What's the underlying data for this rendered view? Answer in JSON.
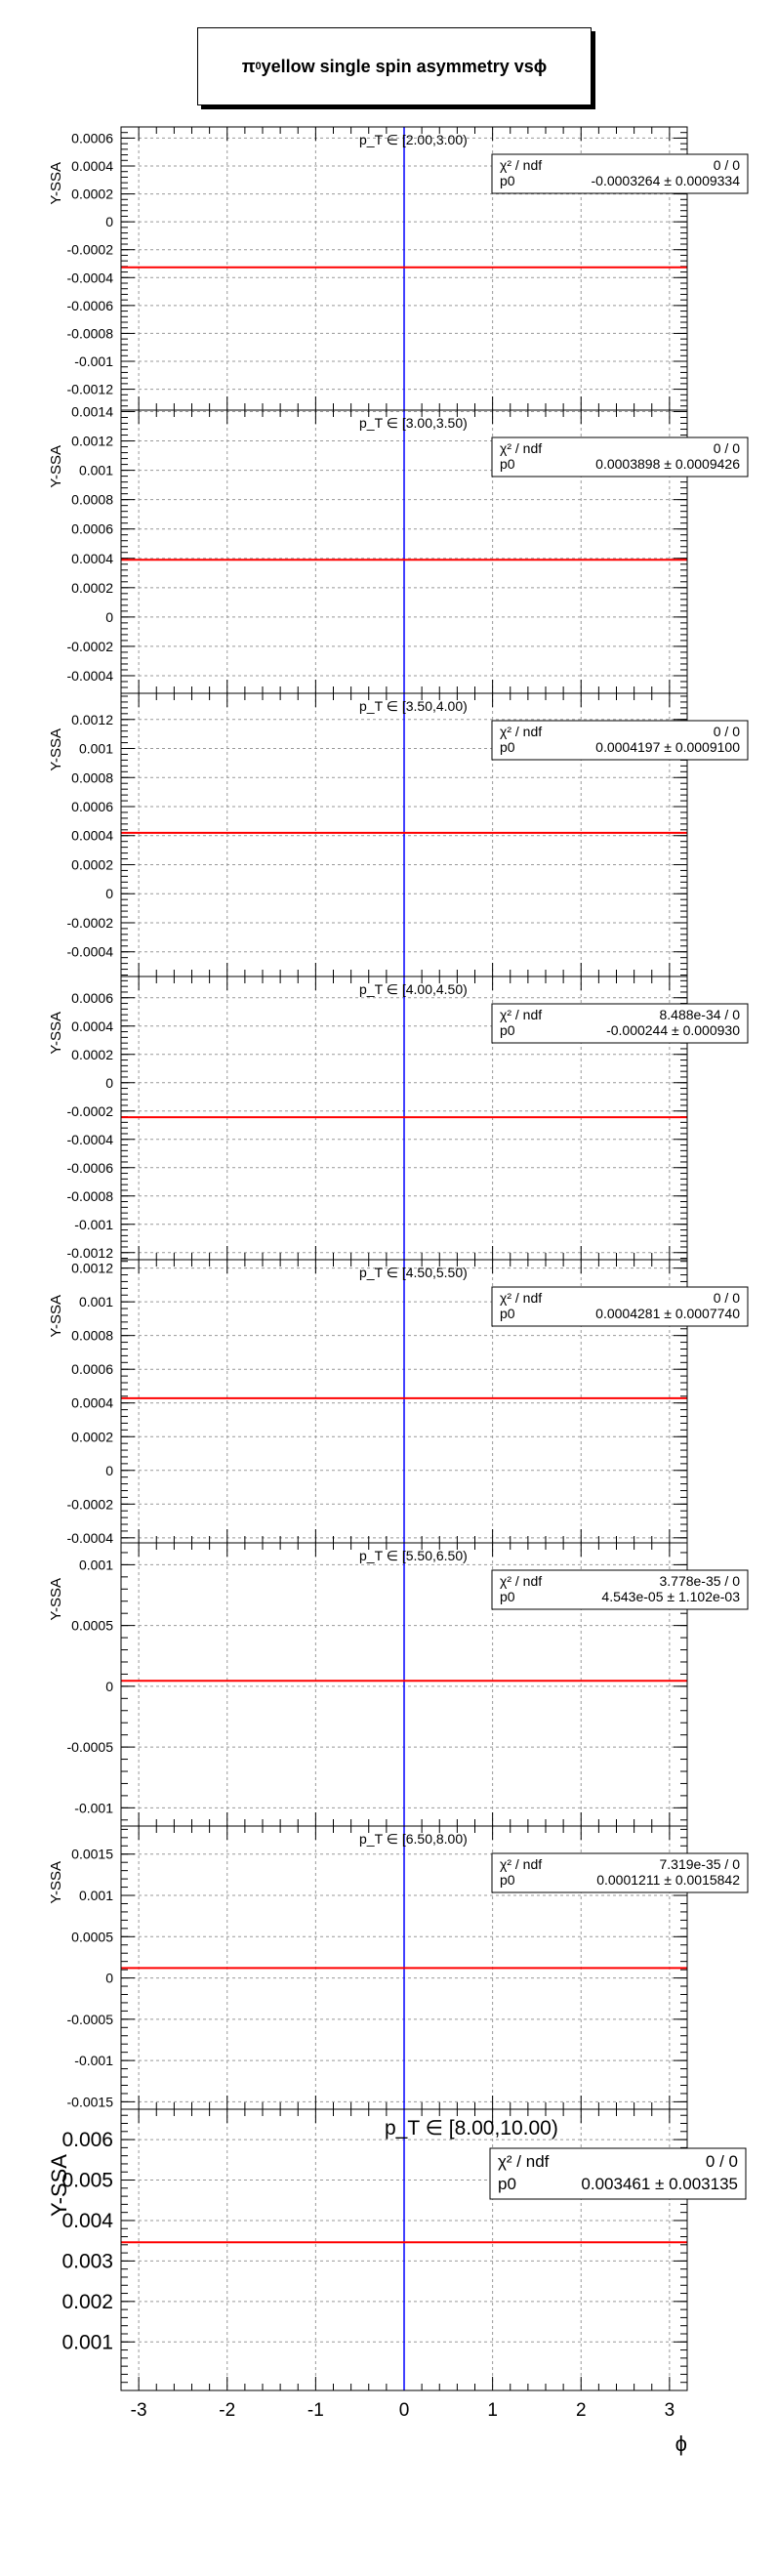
{
  "title": {
    "prefix": "π",
    "sup": "0",
    "suffix": " yellow single spin asymmetry vs ",
    "phi": "ϕ"
  },
  "ylabel": "Y-SSA",
  "xlabel": "ϕ",
  "x_ticks": [
    "-3",
    "-2",
    "-1",
    "0",
    "1",
    "2",
    "3"
  ],
  "chart_data": [
    {
      "type": "line",
      "panel_label": "p_T ∈ [2.00,3.00)",
      "ylim": [
        -0.00135,
        0.00068
      ],
      "y_ticks": [
        "-0.0012",
        "-0.001",
        "-0.0008",
        "-0.0006",
        "-0.0004",
        "-0.0002",
        "0",
        "0.0002",
        "0.0004",
        "0.0006"
      ],
      "y_tick_values": [
        -0.0012,
        -0.001,
        -0.0008,
        -0.0006,
        -0.0004,
        -0.0002,
        0,
        0.0002,
        0.0004,
        0.0006
      ],
      "fit": {
        "chi2_label": "χ² / ndf",
        "chi2": "0 / 0",
        "p0_label": "p0",
        "p0": "-0.0003264 ± 0.0009334",
        "value": -0.0003264
      }
    },
    {
      "type": "line",
      "panel_label": "p_T ∈ [3.00,3.50)",
      "ylim": [
        -0.00052,
        0.00141
      ],
      "y_ticks": [
        "-0.0004",
        "-0.0002",
        "0",
        "0.0002",
        "0.0004",
        "0.0006",
        "0.0008",
        "0.001",
        "0.0012",
        "0.0014"
      ],
      "y_tick_values": [
        -0.0004,
        -0.0002,
        0,
        0.0002,
        0.0004,
        0.0006,
        0.0008,
        0.001,
        0.0012,
        0.0014
      ],
      "fit": {
        "chi2_label": "χ² / ndf",
        "chi2": "0 / 0",
        "p0_label": "p0",
        "p0": "0.0003898 ± 0.0009426",
        "value": 0.0003898
      }
    },
    {
      "type": "line",
      "panel_label": "p_T ∈ [3.50,4.00)",
      "ylim": [
        -0.00057,
        0.00138
      ],
      "y_ticks": [
        "-0.0004",
        "-0.0002",
        "0",
        "0.0002",
        "0.0004",
        "0.0006",
        "0.0008",
        "0.001",
        "0.0012"
      ],
      "y_tick_values": [
        -0.0004,
        -0.0002,
        0,
        0.0002,
        0.0004,
        0.0006,
        0.0008,
        0.001,
        0.0012
      ],
      "fit": {
        "chi2_label": "χ² / ndf",
        "chi2": "0 / 0",
        "p0_label": "p0",
        "p0": "0.0004197 ± 0.0009100",
        "value": 0.0004197
      }
    },
    {
      "type": "line",
      "panel_label": "p_T ∈ [4.00,4.50)",
      "ylim": [
        -0.00125,
        0.00075
      ],
      "y_ticks": [
        "-0.0012",
        "-0.001",
        "-0.0008",
        "-0.0006",
        "-0.0004",
        "-0.0002",
        "0",
        "0.0002",
        "0.0004",
        "0.0006"
      ],
      "y_tick_values": [
        -0.0012,
        -0.001,
        -0.0008,
        -0.0006,
        -0.0004,
        -0.0002,
        0,
        0.0002,
        0.0004,
        0.0006
      ],
      "fit": {
        "chi2_label": "χ² / ndf",
        "chi2": "8.488e-34 / 0",
        "p0_label": "p0",
        "p0": "-0.000244 ± 0.000930",
        "value": -0.000244
      }
    },
    {
      "type": "line",
      "panel_label": "p_T ∈ [4.50,5.50)",
      "ylim": [
        -0.00043,
        0.00125
      ],
      "y_ticks": [
        "-0.0004",
        "-0.0002",
        "0",
        "0.0002",
        "0.0004",
        "0.0006",
        "0.0008",
        "0.001",
        "0.0012"
      ],
      "y_tick_values": [
        -0.0004,
        -0.0002,
        0,
        0.0002,
        0.0004,
        0.0006,
        0.0008,
        0.001,
        0.0012
      ],
      "fit": {
        "chi2_label": "χ² / ndf",
        "chi2": "0 / 0",
        "p0_label": "p0",
        "p0": "0.0004281 ± 0.0007740",
        "value": 0.0004281
      }
    },
    {
      "type": "line",
      "panel_label": "p_T ∈ [5.50,6.50)",
      "ylim": [
        -0.00115,
        0.00118
      ],
      "y_ticks": [
        "-0.001",
        "-0.0005",
        "0",
        "0.0005",
        "0.001"
      ],
      "y_tick_values": [
        -0.001,
        -0.0005,
        0,
        0.0005,
        0.001
      ],
      "fit": {
        "chi2_label": "χ² / ndf",
        "chi2": "3.778e-35 / 0",
        "p0_label": "p0",
        "p0": "4.543e-05 ± 1.102e-03",
        "value": 4.543e-05
      }
    },
    {
      "type": "line",
      "panel_label": "p_T ∈ [6.50,8.00)",
      "ylim": [
        -0.00159,
        0.00184
      ],
      "y_ticks": [
        "-0.0015",
        "-0.001",
        "-0.0005",
        "0",
        "0.0005",
        "0.001",
        "0.0015"
      ],
      "y_tick_values": [
        -0.0015,
        -0.001,
        -0.0005,
        0,
        0.0005,
        0.001,
        0.0015
      ],
      "fit": {
        "chi2_label": "χ² / ndf",
        "chi2": "7.319e-35 / 0",
        "p0_label": "p0",
        "p0": "0.0001211 ± 0.0015842",
        "value": 0.0001211
      }
    },
    {
      "type": "line",
      "panel_label": "p_T ∈ [8.00,10.00)",
      "ylim": [
        -0.0002,
        0.00675
      ],
      "y_ticks": [
        "0.001",
        "0.002",
        "0.003",
        "0.004",
        "0.005",
        "0.006"
      ],
      "y_tick_values": [
        0.001,
        0.002,
        0.003,
        0.004,
        0.005,
        0.006
      ],
      "fit": {
        "chi2_label": "χ² / ndf",
        "chi2": "0 / 0",
        "p0_label": "p0",
        "p0": "0.003461 ± 0.003135",
        "value": 0.003461
      }
    }
  ],
  "x_range": [
    -3.2,
    3.2
  ],
  "x_tick_values": [
    -3,
    -2,
    -1,
    0,
    1,
    2,
    3
  ],
  "colors": {
    "fit": "#ff0000",
    "zero_phi": "#0000ff",
    "grid": "#999999",
    "axis": "#000000"
  }
}
